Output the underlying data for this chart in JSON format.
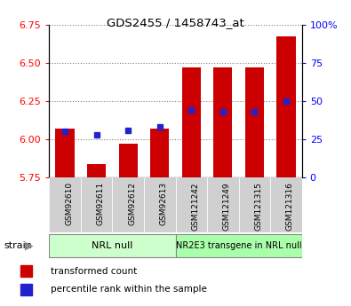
{
  "title": "GDS2455 / 1458743_at",
  "samples": [
    "GSM92610",
    "GSM92611",
    "GSM92612",
    "GSM92613",
    "GSM121242",
    "GSM121249",
    "GSM121315",
    "GSM121316"
  ],
  "transformed_count": [
    6.07,
    5.84,
    5.97,
    6.07,
    6.47,
    6.47,
    6.47,
    6.67
  ],
  "percentile_rank": [
    30,
    28,
    31,
    33,
    44,
    43,
    43,
    50
  ],
  "y_min": 5.75,
  "y_max": 6.75,
  "y_ticks": [
    5.75,
    6.0,
    6.25,
    6.5,
    6.75
  ],
  "right_y_ticks": [
    0,
    25,
    50,
    75,
    100
  ],
  "right_y_labels": [
    "0",
    "25",
    "50",
    "75",
    "100%"
  ],
  "bar_color": "#cc0000",
  "blue_color": "#2222cc",
  "group1_label": "NRL null",
  "group2_label": "NR2E3 transgene in NRL null",
  "group1_bg": "#ccffcc",
  "group2_bg": "#aaffaa",
  "sample_label_bg": "#d0d0d0",
  "bar_width": 0.6,
  "baseline": 5.75,
  "legend_items": [
    "transformed count",
    "percentile rank within the sample"
  ],
  "legend_colors": [
    "#cc0000",
    "#2222cc"
  ],
  "fig_width": 3.95,
  "fig_height": 3.45,
  "dpi": 100
}
